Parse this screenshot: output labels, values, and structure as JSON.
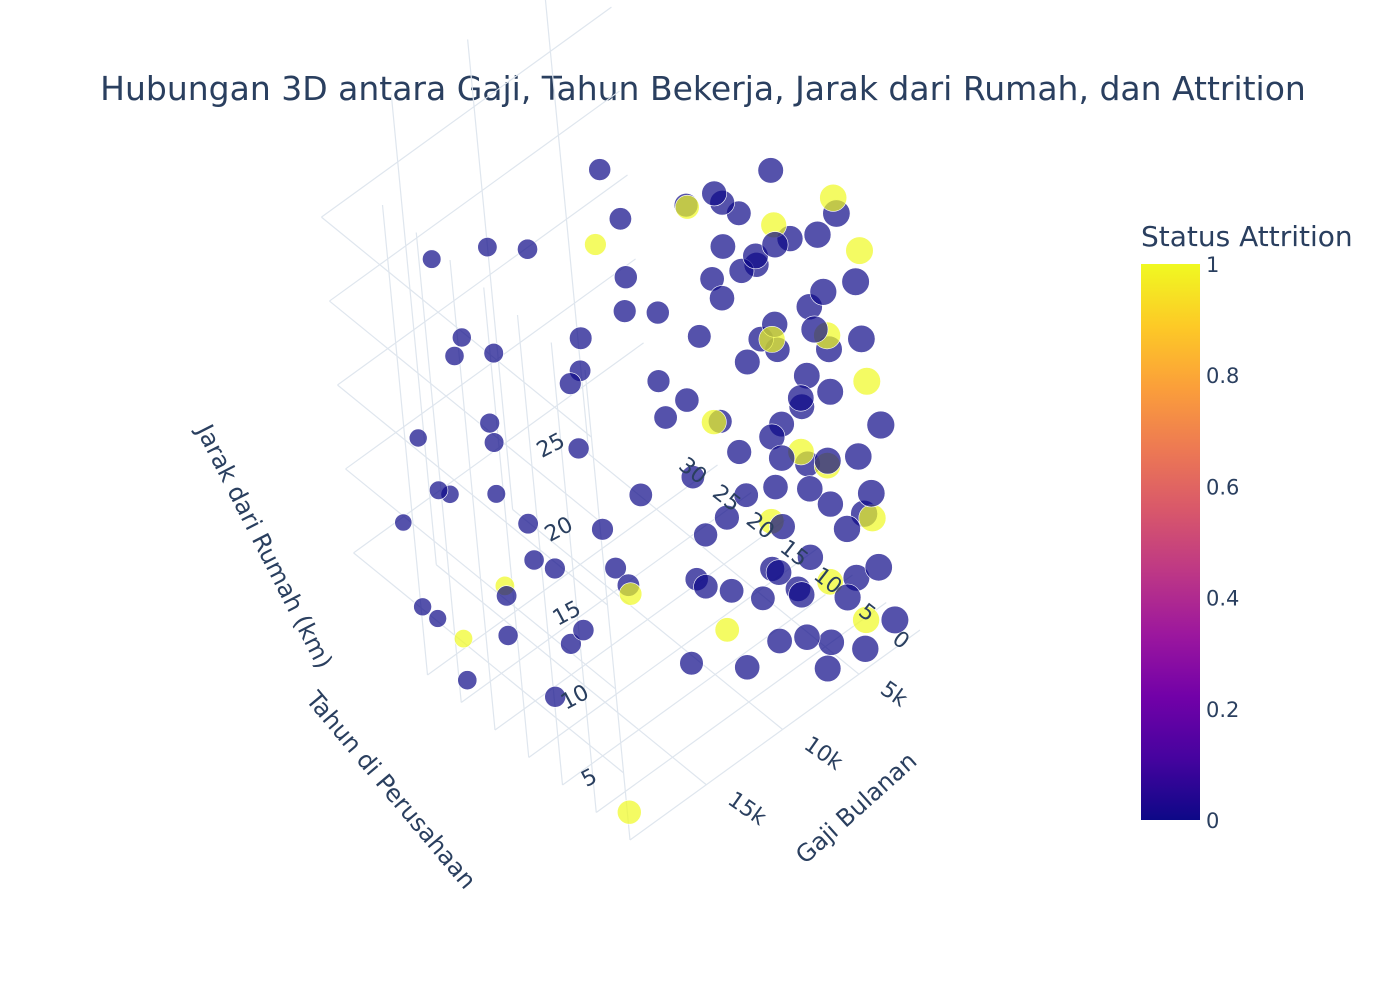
{
  "chart_data": {
    "type": "scatter3d",
    "title": "Hubungan 3D antara Gaji, Tahun Bekerja, Jarak dari Rumah, dan Attrition",
    "axes": {
      "x": {
        "label": "Gaji Bulanan",
        "ticks": [
          5000,
          10000,
          15000
        ],
        "tick_labels": [
          "5k",
          "10k",
          "15k"
        ],
        "range": [
          1000,
          20000
        ]
      },
      "y": {
        "label": "Tahun di Perusahaan",
        "ticks": [
          0,
          5,
          10,
          15,
          20,
          25,
          30
        ],
        "tick_labels": [
          "0",
          "5",
          "10",
          "15",
          "20",
          "25",
          "30"
        ],
        "range": [
          0,
          40
        ]
      },
      "z": {
        "label": "Jarak dari Rumah (km)",
        "ticks": [
          5,
          10,
          15,
          20,
          25
        ],
        "tick_labels": [
          "5",
          "10",
          "15",
          "20",
          "25"
        ],
        "range": [
          1,
          29
        ]
      }
    },
    "colorbar": {
      "title": "Status Attrition",
      "ticks": [
        0,
        0.2,
        0.4,
        0.6,
        0.8,
        1
      ],
      "tick_labels": [
        "0",
        "0.2",
        "0.4",
        "0.6",
        "0.8",
        "1"
      ],
      "range": [
        0,
        1
      ],
      "colorscale": [
        "#0d0887",
        "#46039f",
        "#7201a8",
        "#9c179e",
        "#bd3786",
        "#d8576b",
        "#ed7953",
        "#fb9f3a",
        "#fdca26",
        "#f0f921"
      ]
    },
    "marker": {
      "opacity": 0.7,
      "line_color": "#ffffff"
    },
    "series": [
      {
        "attrition": 0,
        "points": [
          [
            2100,
            1,
            2
          ],
          [
            2400,
            2,
            5
          ],
          [
            2600,
            3,
            8
          ],
          [
            2800,
            1,
            10
          ],
          [
            3000,
            2,
            12
          ],
          [
            3200,
            5,
            15
          ],
          [
            3400,
            4,
            18
          ],
          [
            3600,
            6,
            20
          ],
          [
            3800,
            3,
            22
          ],
          [
            4000,
            7,
            24
          ],
          [
            4200,
            2,
            26
          ],
          [
            4400,
            8,
            28
          ],
          [
            4600,
            5,
            1
          ],
          [
            4800,
            9,
            3
          ],
          [
            5000,
            6,
            6
          ],
          [
            5200,
            10,
            9
          ],
          [
            5400,
            4,
            11
          ],
          [
            5600,
            7,
            14
          ],
          [
            5800,
            3,
            17
          ],
          [
            6000,
            8,
            19
          ],
          [
            6200,
            5,
            21
          ],
          [
            6400,
            9,
            23
          ],
          [
            6600,
            6,
            25
          ],
          [
            6800,
            10,
            27
          ],
          [
            7000,
            7,
            2
          ],
          [
            7200,
            2,
            4
          ],
          [
            7400,
            5,
            7
          ],
          [
            7600,
            9,
            13
          ],
          [
            7800,
            3,
            16
          ],
          [
            8000,
            8,
            29
          ],
          [
            8500,
            10,
            5
          ],
          [
            9000,
            12,
            8
          ],
          [
            9500,
            7,
            11
          ],
          [
            10000,
            14,
            15
          ],
          [
            10500,
            9,
            18
          ],
          [
            11000,
            11,
            2
          ],
          [
            11500,
            15,
            22
          ],
          [
            12000,
            13,
            25
          ],
          [
            12500,
            16,
            6
          ],
          [
            13000,
            18,
            9
          ],
          [
            13500,
            10,
            14
          ],
          [
            14000,
            20,
            3
          ],
          [
            14500,
            17,
            19
          ],
          [
            15000,
            21,
            7
          ],
          [
            15500,
            12,
            24
          ],
          [
            16000,
            22,
            10
          ],
          [
            16500,
            19,
            1
          ],
          [
            17000,
            24,
            16
          ],
          [
            17500,
            23,
            4
          ],
          [
            18000,
            26,
            20
          ],
          [
            18500,
            20,
            8
          ],
          [
            19000,
            28,
            12
          ],
          [
            19500,
            25,
            2
          ],
          [
            19900,
            30,
            5
          ],
          [
            16800,
            32,
            9
          ],
          [
            17900,
            33,
            2
          ],
          [
            18800,
            31,
            14
          ],
          [
            15200,
            27,
            18
          ],
          [
            14200,
            29,
            23
          ],
          [
            13200,
            34,
            6
          ],
          [
            2300,
            6,
            3
          ],
          [
            2700,
            8,
            7
          ],
          [
            3100,
            10,
            9
          ],
          [
            3500,
            9,
            13
          ],
          [
            3900,
            11,
            16
          ],
          [
            4300,
            12,
            21
          ],
          [
            4700,
            13,
            24
          ],
          [
            5100,
            14,
            1
          ],
          [
            5500,
            11,
            4
          ],
          [
            5900,
            13,
            8
          ],
          [
            6300,
            15,
            12
          ],
          [
            6700,
            16,
            17
          ],
          [
            7100,
            12,
            22
          ],
          [
            7500,
            14,
            26
          ],
          [
            7900,
            17,
            3
          ],
          [
            8300,
            15,
            10
          ],
          [
            8700,
            18,
            15
          ],
          [
            9100,
            16,
            20
          ],
          [
            9700,
            19,
            25
          ],
          [
            10300,
            20,
            28
          ],
          [
            10900,
            22,
            4
          ],
          [
            11700,
            24,
            11
          ],
          [
            12300,
            21,
            17
          ],
          [
            12900,
            26,
            23
          ],
          [
            13700,
            23,
            1
          ],
          [
            14700,
            25,
            6
          ],
          [
            15700,
            27,
            13
          ],
          [
            16300,
            29,
            19
          ],
          [
            17300,
            30,
            24
          ],
          [
            18300,
            36,
            7
          ],
          [
            2200,
            0,
            14
          ],
          [
            2500,
            1,
            19
          ],
          [
            2900,
            0,
            23
          ],
          [
            3300,
            1,
            27
          ],
          [
            3700,
            2,
            1
          ],
          [
            4100,
            3,
            4
          ],
          [
            4500,
            1,
            9
          ],
          [
            4900,
            2,
            13
          ],
          [
            5300,
            3,
            18
          ],
          [
            5700,
            0,
            22
          ],
          [
            6100,
            4,
            26
          ],
          [
            6500,
            1,
            2
          ],
          [
            6900,
            3,
            6
          ],
          [
            7300,
            4,
            10
          ],
          [
            7700,
            2,
            15
          ],
          [
            8100,
            5,
            20
          ],
          [
            8900,
            6,
            24
          ],
          [
            9300,
            4,
            28
          ],
          [
            9900,
            5,
            3
          ],
          [
            11200,
            7,
            8
          ]
        ]
      },
      {
        "attrition": 1,
        "points": [
          [
            2100,
            1,
            24
          ],
          [
            2500,
            2,
            8
          ],
          [
            2800,
            0,
            17
          ],
          [
            3100,
            3,
            2
          ],
          [
            3400,
            1,
            28
          ],
          [
            3800,
            5,
            11
          ],
          [
            4200,
            2,
            20
          ],
          [
            4700,
            4,
            5
          ],
          [
            5300,
            6,
            26
          ],
          [
            6100,
            3,
            14
          ],
          [
            6800,
            7,
            9
          ],
          [
            7600,
            2,
            22
          ],
          [
            9000,
            10,
            3
          ],
          [
            10500,
            5,
            18
          ],
          [
            12800,
            15,
            6
          ],
          [
            15500,
            28,
            4
          ],
          [
            17200,
            31,
            1
          ],
          [
            19500,
            1,
            2
          ],
          [
            11000,
            20,
            24
          ],
          [
            8200,
            12,
            27
          ]
        ]
      }
    ]
  }
}
